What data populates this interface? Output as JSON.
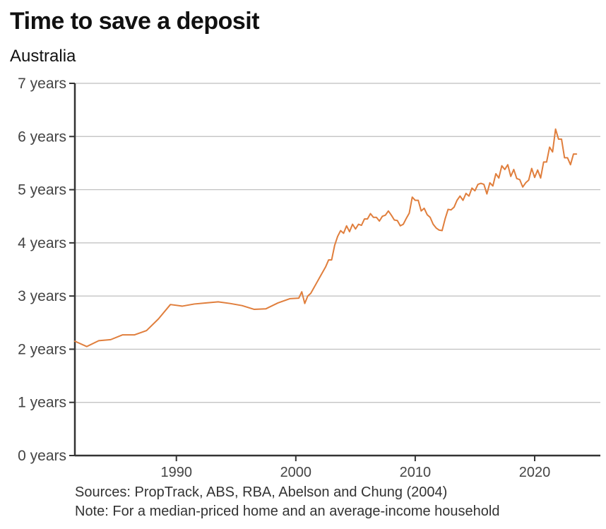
{
  "header": {
    "title": "Time to save a deposit",
    "subtitle": "Australia"
  },
  "footer": {
    "sources": "Sources: PropTrack, ABS, RBA, Abelson and Chung (2004)",
    "note": "Note: For a median-priced home and an average-income household"
  },
  "colors": {
    "series": "#e07e3c",
    "grid": "#bdbdbd",
    "axis": "#333333"
  },
  "chart_data": {
    "type": "line",
    "title": "Time to save a deposit",
    "subtitle": "Australia",
    "xlabel": "",
    "ylabel": "",
    "xlim": [
      1981.5,
      2025.5
    ],
    "ylim": [
      0,
      7
    ],
    "grid": true,
    "legend": "none",
    "x_ticks": [
      1990,
      2000,
      2010,
      2020
    ],
    "x_tick_labels": [
      "1990",
      "2000",
      "2010",
      "2020"
    ],
    "y_ticks": [
      0,
      1,
      2,
      3,
      4,
      5,
      6,
      7
    ],
    "y_tick_labels": [
      "0 years",
      "1 years",
      "2 years",
      "3 years",
      "4 years",
      "5 years",
      "6 years",
      "7 years"
    ],
    "series": [
      {
        "x": [
          1981.5,
          1982.5,
          1983.5,
          1984.5,
          1985.5,
          1986.5,
          1987.5,
          1988.5,
          1989.5,
          1990.5,
          1991.5,
          1992.5,
          1993.5,
          1994.5,
          1995.5,
          1996.5,
          1997.5,
          1998.5,
          1999.5,
          2000.25,
          2000.5,
          2000.75,
          2001.0,
          2001.25,
          2001.5,
          2001.75,
          2002.0,
          2002.25,
          2002.5,
          2002.75,
          2003.0,
          2003.25,
          2003.5,
          2003.75,
          2004.0,
          2004.25,
          2004.5,
          2004.75,
          2005.0,
          2005.25,
          2005.5,
          2005.75,
          2006.0,
          2006.25,
          2006.5,
          2006.75,
          2007.0,
          2007.25,
          2007.5,
          2007.75,
          2008.0,
          2008.25,
          2008.5,
          2008.75,
          2009.0,
          2009.25,
          2009.5,
          2009.75,
          2010.0,
          2010.25,
          2010.5,
          2010.75,
          2011.0,
          2011.25,
          2011.5,
          2011.75,
          2012.0,
          2012.25,
          2012.5,
          2012.75,
          2013.0,
          2013.25,
          2013.5,
          2013.75,
          2014.0,
          2014.25,
          2014.5,
          2014.75,
          2015.0,
          2015.25,
          2015.5,
          2015.75,
          2016.0,
          2016.25,
          2016.5,
          2016.75,
          2017.0,
          2017.25,
          2017.5,
          2017.75,
          2018.0,
          2018.25,
          2018.5,
          2018.75,
          2019.0,
          2019.25,
          2019.5,
          2019.75,
          2020.0,
          2020.25,
          2020.5,
          2020.75,
          2021.0,
          2021.25,
          2021.5,
          2021.75,
          2022.0,
          2022.25,
          2022.5,
          2022.75,
          2023.0,
          2023.25,
          2023.5
        ],
        "values": [
          2.15,
          2.05,
          2.16,
          2.18,
          2.27,
          2.27,
          2.35,
          2.57,
          2.84,
          2.81,
          2.85,
          2.87,
          2.89,
          2.86,
          2.82,
          2.75,
          2.76,
          2.87,
          2.95,
          2.96,
          3.08,
          2.86,
          3.0,
          3.05,
          3.15,
          3.25,
          3.35,
          3.45,
          3.55,
          3.68,
          3.68,
          3.95,
          4.12,
          4.23,
          4.18,
          4.32,
          4.21,
          4.35,
          4.26,
          4.35,
          4.33,
          4.45,
          4.45,
          4.55,
          4.48,
          4.48,
          4.41,
          4.5,
          4.52,
          4.6,
          4.52,
          4.43,
          4.42,
          4.32,
          4.35,
          4.46,
          4.56,
          4.86,
          4.8,
          4.8,
          4.6,
          4.65,
          4.53,
          4.48,
          4.35,
          4.28,
          4.24,
          4.23,
          4.45,
          4.63,
          4.62,
          4.67,
          4.8,
          4.88,
          4.8,
          4.93,
          4.88,
          5.03,
          4.98,
          5.1,
          5.12,
          5.1,
          4.92,
          5.13,
          5.07,
          5.3,
          5.22,
          5.45,
          5.38,
          5.47,
          5.25,
          5.38,
          5.21,
          5.19,
          5.05,
          5.13,
          5.18,
          5.4,
          5.23,
          5.37,
          5.22,
          5.52,
          5.52,
          5.8,
          5.71,
          6.14,
          5.95,
          5.95,
          5.6,
          5.6,
          5.47,
          5.67,
          5.67
        ]
      }
    ]
  }
}
